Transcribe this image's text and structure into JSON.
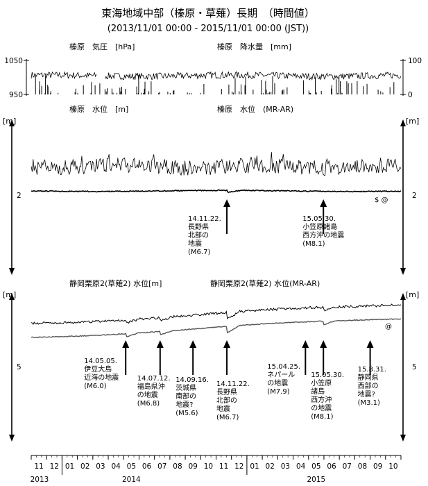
{
  "title": "東海地域中部（榛原・草薙）長期　（時間値）",
  "subtitle": "(2013/11/01 00:00 - 2015/11/01 00:00 (JST))",
  "colors": {
    "line": "#000000",
    "trace_gray": "#555555",
    "background": "#ffffff"
  },
  "chart_data": [
    {
      "type": "line",
      "panel": "haibara-pressure-precip",
      "labels": {
        "left": "榛原　気圧　[hPa]",
        "right": "榛原　降水量　[mm]"
      },
      "left_ticks": [
        "1050",
        "950"
      ],
      "right_ticks": [
        "100",
        "0"
      ],
      "ylim_left": [
        950,
        1050
      ],
      "ylim_right": [
        0,
        100
      ],
      "series": [
        {
          "name": "榛原　気圧",
          "axis": "left",
          "mean": 1005,
          "amplitude": 10
        },
        {
          "name": "榛原　降水量",
          "axis": "right",
          "type": "bar"
        }
      ]
    },
    {
      "type": "line",
      "panel": "haibara-water-level",
      "labels": {
        "left": "榛原　水位　[m]",
        "right": "榛原　水位　(MR-AR)"
      },
      "unit": "[m]",
      "mid_tick": "2",
      "marks": "$ @",
      "events": [
        {
          "date": "2014-11-22",
          "label": [
            "14.11.22.",
            "長野県",
            "北部の",
            "地震",
            "(M6.7)"
          ]
        },
        {
          "date": "2015-05-30",
          "label": [
            "15.05.30.",
            "小笠原諸島",
            "西方沖の地震",
            "(M8.1)"
          ]
        }
      ]
    },
    {
      "type": "line",
      "panel": "shizuoka-kurihara2",
      "labels": {
        "left": "静岡栗原2(草薙2) 水位[m]",
        "right": "静岡栗原2(草薙2) 水位(MR-AR)"
      },
      "unit": "[m]",
      "mid_tick": "5",
      "marks": "@",
      "events": [
        {
          "date": "2014-05-05",
          "label": [
            "14.05.05.",
            "伊豆大島",
            "近海の地震",
            "(M6.0)"
          ]
        },
        {
          "date": "2014-07-12",
          "label": [
            "14.07.12.",
            "福島県沖",
            "の地震",
            "(M6.8)"
          ]
        },
        {
          "date": "2014-09-16",
          "label": [
            "14.09.16.",
            "茨城県",
            "南部の",
            "地震?",
            "(M5.6)"
          ]
        },
        {
          "date": "2014-11-22",
          "label": [
            "14.11.22.",
            "長野県",
            "北部の",
            "地震",
            "(M6.7)"
          ]
        },
        {
          "date": "2015-04-25",
          "label": [
            "15.04.25.",
            "ネパール",
            "の地震",
            "(M7.9)"
          ]
        },
        {
          "date": "2015-05-30",
          "label": [
            "15.05.30.",
            "小笠原",
            "諸島",
            "西方沖",
            "の地震",
            "(M8.1)"
          ]
        },
        {
          "date": "2015-08-31",
          "label": [
            "15.8.31.",
            "静岡県",
            "西部の",
            "地震?",
            "(M3.1)"
          ]
        }
      ]
    }
  ],
  "x_axis": {
    "months": [
      "11",
      "12",
      "01",
      "02",
      "03",
      "04",
      "05",
      "06",
      "07",
      "08",
      "09",
      "10",
      "11",
      "12",
      "01",
      "02",
      "03",
      "04",
      "05",
      "06",
      "07",
      "08",
      "09",
      "10"
    ],
    "years": [
      {
        "label": "2013",
        "month_index": 0
      },
      {
        "label": "2014",
        "month_index": 6
      },
      {
        "label": "2015",
        "month_index": 18
      }
    ]
  }
}
